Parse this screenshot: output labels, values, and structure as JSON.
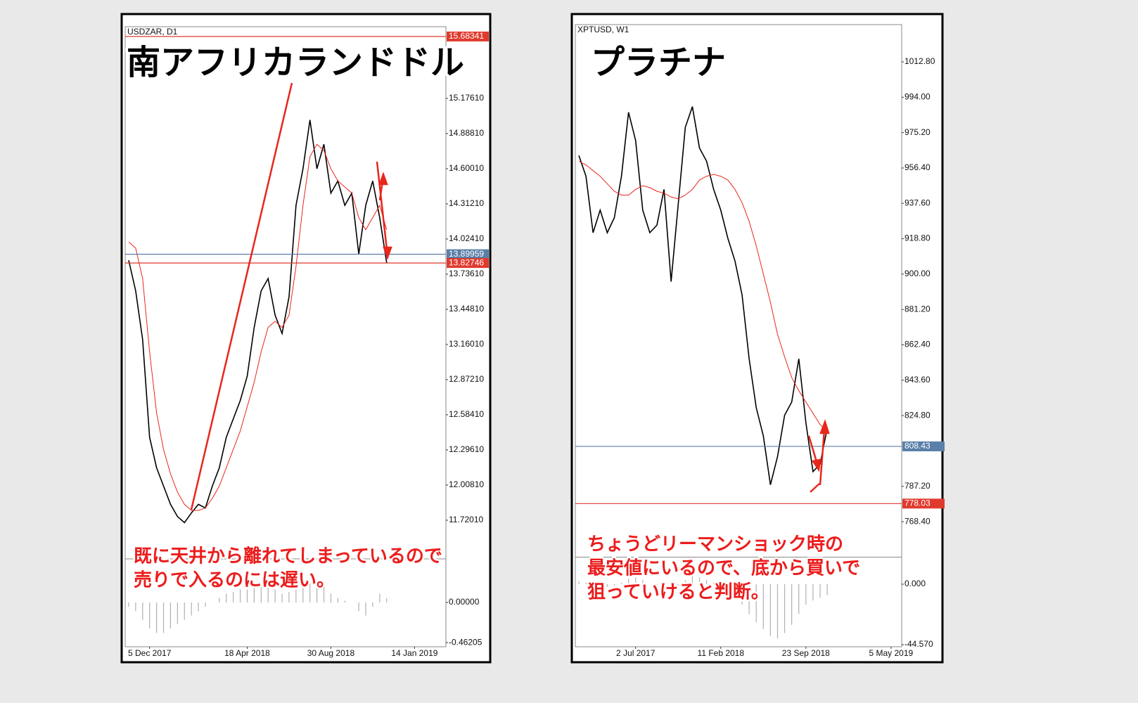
{
  "chart_data": [
    {
      "type": "line",
      "title": "南アフリカランドドル",
      "symbol": "USDZAR, D1",
      "notes": [
        "既に天井から離れてしまっているので",
        "売りで入るのには遅い。"
      ],
      "categories": [
        null,
        null,
        null,
        "5 Dec 2017",
        null,
        null,
        null,
        null,
        null,
        null,
        null,
        null,
        null,
        null,
        null,
        null,
        null,
        "18 Apr 2018",
        null,
        null,
        null,
        null,
        null,
        null,
        null,
        null,
        null,
        null,
        null,
        "30 Aug 2018",
        null,
        null,
        null,
        null,
        null,
        null,
        null,
        null,
        null,
        null,
        null,
        "14 Jan 2019",
        null,
        null,
        null,
        null
      ],
      "series": [
        {
          "color": "#000000",
          "values": [
            13.85,
            13.6,
            13.2,
            12.4,
            12.15,
            12.0,
            11.85,
            11.75,
            11.7,
            11.78,
            11.85,
            11.82,
            12.0,
            12.15,
            12.4,
            12.55,
            12.7,
            12.9,
            13.3,
            13.6,
            13.7,
            13.4,
            13.25,
            13.55,
            14.3,
            14.6,
            15.0,
            14.6,
            14.8,
            14.4,
            14.5,
            14.3,
            14.4,
            13.9,
            14.3,
            14.5,
            14.2,
            13.83,
            null,
            null,
            null,
            null,
            null,
            null,
            null,
            null
          ]
        },
        {
          "color": "#e8261c",
          "values": [
            14.0,
            13.95,
            13.7,
            13.1,
            12.6,
            12.3,
            12.1,
            11.95,
            11.85,
            11.8,
            11.8,
            11.82,
            11.9,
            12.0,
            12.15,
            12.3,
            12.45,
            12.65,
            12.85,
            13.1,
            13.3,
            13.35,
            13.3,
            13.4,
            13.8,
            14.3,
            14.7,
            14.8,
            14.75,
            14.6,
            14.5,
            14.45,
            14.4,
            14.2,
            14.1,
            14.2,
            14.3,
            14.1,
            null,
            null,
            null,
            null,
            null,
            null,
            null,
            null
          ]
        }
      ],
      "ylim": [
        11.432,
        15.752
      ],
      "yticks": [
        {
          "value": 15.1761,
          "label": "15.17610"
        },
        {
          "value": 14.8881,
          "label": "14.88810"
        },
        {
          "value": 14.6001,
          "label": "14.60010"
        },
        {
          "value": 14.3121,
          "label": "14.31210"
        },
        {
          "value": 14.0241,
          "label": "14.02410"
        },
        {
          "value": 13.7361,
          "label": "13.73610"
        },
        {
          "value": 13.4481,
          "label": "13.44810"
        },
        {
          "value": 13.1601,
          "label": "13.16010"
        },
        {
          "value": 12.8721,
          "label": "12.87210"
        },
        {
          "value": 12.5841,
          "label": "12.58410"
        },
        {
          "value": 12.2961,
          "label": "12.29610"
        },
        {
          "value": 12.0081,
          "label": "12.00810"
        },
        {
          "value": 11.7201,
          "label": "11.72010"
        }
      ],
      "price_lines": [
        {
          "value": 15.68341,
          "color": "#e03a2e"
        },
        {
          "value": 13.89959,
          "color": "#5a7fa8"
        },
        {
          "value": 13.82746,
          "color": "#e03a2e"
        }
      ],
      "indicator": {
        "type": "bar",
        "color": "#b0b0b0",
        "values": [
          -0.05,
          -0.1,
          -0.2,
          -0.3,
          -0.35,
          -0.35,
          -0.3,
          -0.25,
          -0.2,
          -0.15,
          -0.1,
          -0.05,
          0.0,
          0.05,
          0.1,
          0.12,
          0.15,
          0.15,
          0.18,
          0.2,
          0.2,
          0.15,
          0.1,
          0.12,
          0.15,
          0.2,
          0.22,
          0.2,
          0.18,
          0.1,
          0.05,
          0.02,
          0.0,
          -0.1,
          -0.15,
          -0.05,
          0.1,
          0.05,
          null,
          null,
          null,
          null,
          null,
          null,
          null,
          null
        ],
        "ylim": [
          -0.51,
          0.462
        ],
        "yticks": [
          {
            "value": 0,
            "label": "0.00000"
          },
          -0.46205
        ]
      }
    },
    {
      "type": "line",
      "title": "プラチナ",
      "symbol": "XPTUSD, W1",
      "notes": [
        "ちょうどリーマンショック時の",
        "最安値にいるので、底から買いで",
        "狙っていけると判断。"
      ],
      "categories": [
        null,
        null,
        null,
        null,
        null,
        null,
        null,
        null,
        "2 Jul 2017",
        null,
        null,
        null,
        null,
        null,
        null,
        null,
        null,
        null,
        null,
        null,
        "11 Feb 2018",
        null,
        null,
        null,
        null,
        null,
        null,
        null,
        null,
        null,
        null,
        null,
        "23 Sep 2018",
        null,
        null,
        null,
        null,
        null,
        null,
        null,
        null,
        null,
        null,
        null,
        "5 May 2019",
        null
      ],
      "series": [
        {
          "color": "#000000",
          "values": [
            963,
            952,
            922,
            934,
            922,
            930,
            952,
            986,
            971,
            934,
            922,
            926,
            945,
            896,
            937,
            978,
            989,
            967,
            960,
            945,
            934,
            919,
            907,
            889,
            855,
            829,
            814,
            788,
            803,
            825,
            832,
            855,
            821,
            795,
            799,
            818,
            null,
            null,
            null,
            null,
            null,
            null,
            null,
            null,
            null,
            null
          ]
        },
        {
          "color": "#e8261c",
          "values": [
            960,
            958,
            955,
            952,
            948,
            944,
            942,
            942,
            945,
            947,
            946,
            944,
            943,
            941,
            940,
            942,
            945,
            950,
            952,
            953,
            952,
            950,
            945,
            938,
            928,
            915,
            900,
            885,
            868,
            856,
            845,
            838,
            832,
            826,
            820,
            816,
            null,
            null,
            null,
            null,
            null,
            null,
            null,
            null,
            null,
            null
          ]
        }
      ],
      "ylim": [
        750.5,
        1032.6
      ],
      "yticks": [
        {
          "value": 1012.8,
          "label": "1012.80"
        },
        {
          "value": 994,
          "label": "994.00"
        },
        {
          "value": 975.2,
          "label": "975.20"
        },
        {
          "value": 956.4,
          "label": "956.40"
        },
        {
          "value": 937.6,
          "label": "937.60"
        },
        {
          "value": 918.8,
          "label": "918.80"
        },
        {
          "value": 900,
          "label": "900.00"
        },
        {
          "value": 881.2,
          "label": "881.20"
        },
        {
          "value": 862.4,
          "label": "862.40"
        },
        {
          "value": 843.6,
          "label": "843.60"
        },
        {
          "value": 824.8,
          "label": "824.80"
        },
        {
          "value": 787.2,
          "label": "787.20"
        },
        {
          "value": 768.4,
          "label": "768.40"
        }
      ],
      "price_lines": [
        {
          "value": 808.43,
          "color": "#5a7fa8"
        },
        {
          "value": 778.03,
          "color": "#e03a2e"
        }
      ],
      "indicator": {
        "type": "bar",
        "color": "#b0b0b0",
        "values": [
          2,
          1,
          -2,
          -3,
          -2,
          -1,
          1,
          4,
          5,
          3,
          0,
          -1,
          0,
          -2,
          -1,
          3,
          6,
          5,
          3,
          1,
          -2,
          -5,
          -10,
          -15,
          -22,
          -28,
          -33,
          -38,
          -40,
          -36,
          -30,
          -22,
          -15,
          -12,
          -10,
          -8,
          null,
          null,
          null,
          null,
          null,
          null,
          null,
          null,
          null,
          null
        ],
        "ylim": [
          -46.1,
          18.66
        ],
        "yticks": [
          {
            "value": 0,
            "label": "0.000"
          },
          {
            "value": -44.57,
            "label": "-44.570"
          }
        ]
      }
    }
  ]
}
